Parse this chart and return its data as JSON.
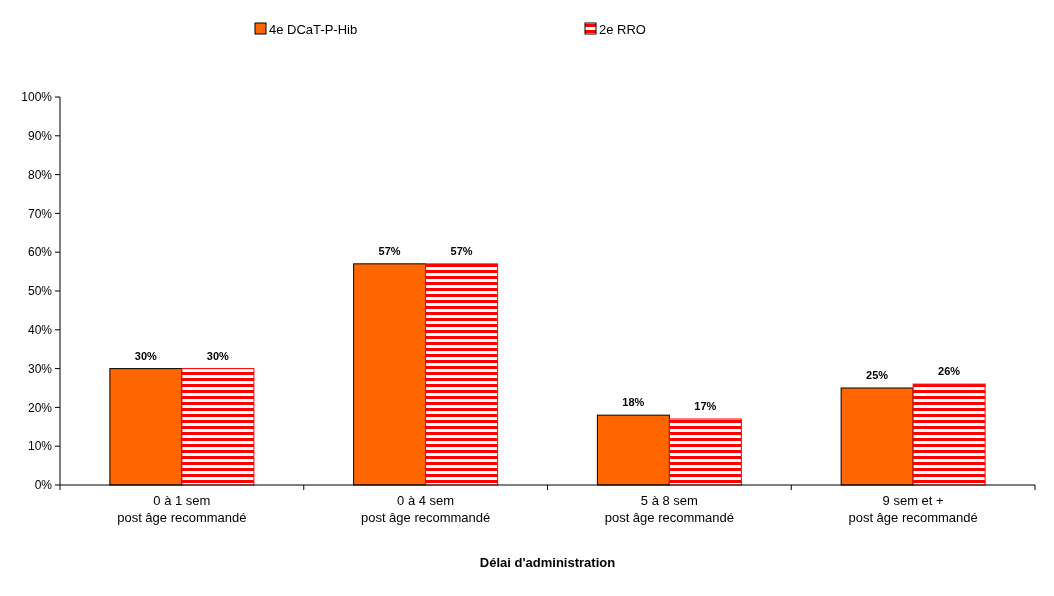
{
  "chart_data": {
    "type": "bar",
    "xlabel": "Délai d'administration",
    "categories": [
      "0 à 1 sem\npost âge recommandé",
      "0 à 4 sem\npost âge recommandé",
      "5 à 8 sem\npost âge recommandé",
      "9 sem et +\npost âge recommandé"
    ],
    "series": [
      {
        "name": "4e DCaT-P-Hib",
        "color": "#ff6600",
        "values": [
          30,
          57,
          18,
          25
        ],
        "value_labels": [
          "30%",
          "57%",
          "18%",
          "25%"
        ]
      },
      {
        "name": "2e RRO",
        "color": "#ff0000",
        "values": [
          30,
          57,
          17,
          26
        ],
        "value_labels": [
          "30%",
          "57%",
          "17%",
          "26%"
        ]
      }
    ],
    "ylim": [
      0,
      100
    ],
    "yticks": [
      {
        "value": 0,
        "label": "0%"
      },
      {
        "value": 10,
        "label": "10%"
      },
      {
        "value": 20,
        "label": "20%"
      },
      {
        "value": 30,
        "label": "30%"
      },
      {
        "value": 40,
        "label": "40%"
      },
      {
        "value": 50,
        "label": "50%"
      },
      {
        "value": 60,
        "label": "60%"
      },
      {
        "value": 70,
        "label": "70%"
      },
      {
        "value": 80,
        "label": "80%"
      },
      {
        "value": 90,
        "label": "90%"
      },
      {
        "value": 100,
        "label": "100%"
      }
    ],
    "legend": "top",
    "grid": false
  }
}
